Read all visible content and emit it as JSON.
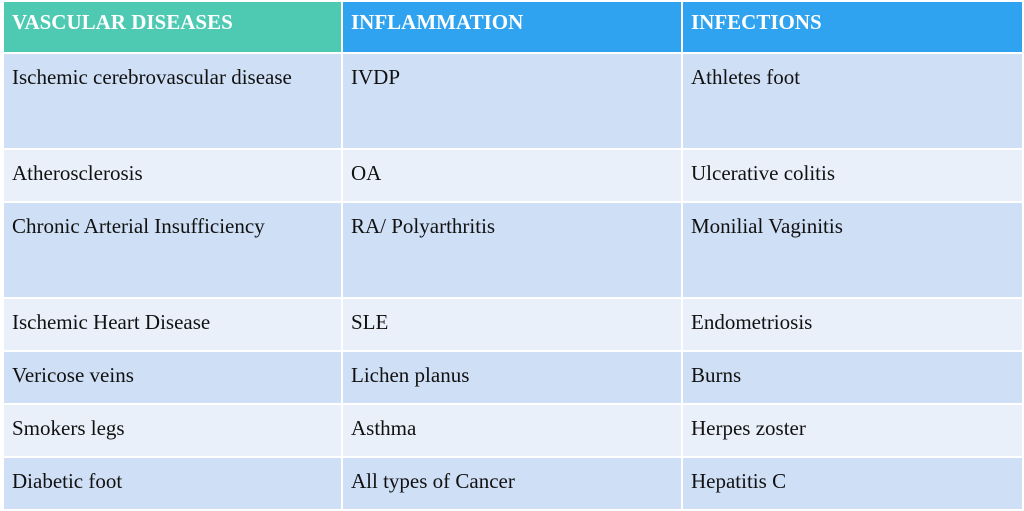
{
  "headers": [
    "VASCULAR DISEASES",
    "INFLAMMATION",
    "INFECTIONS"
  ],
  "rows": [
    [
      "Ischemic cerebrovascular disease",
      "IVDP",
      "Athletes foot"
    ],
    [
      "Atherosclerosis",
      "OA",
      "Ulcerative colitis"
    ],
    [
      "Chronic Arterial Insufficiency",
      "RA/ Polyarthritis",
      "Monilial Vaginitis"
    ],
    [
      "Ischemic Heart Disease",
      "SLE",
      "Endometriosis"
    ],
    [
      "Vericose veins",
      "Lichen planus",
      "Burns"
    ],
    [
      "Smokers legs",
      "Asthma",
      "Herpes zoster"
    ],
    [
      "Diabetic foot",
      "All types of Cancer",
      "Hepatitis C"
    ]
  ],
  "colors": {
    "header_vascular": "#4ecab3",
    "header_other": "#2fa3ef",
    "row_dark": "#cfdff6",
    "row_light": "#e9f0fa"
  }
}
